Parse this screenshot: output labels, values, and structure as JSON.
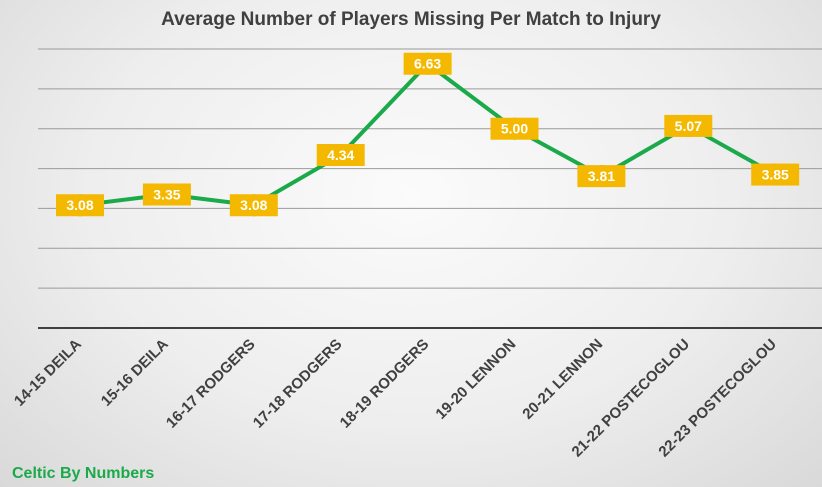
{
  "chart_data": {
    "type": "line",
    "title": "Average Number of Players Missing Per Match to Injury",
    "categories": [
      "14-15 DEILA",
      "15-16 DEILA",
      "16-17 RODGERS",
      "17-18 RODGERS",
      "18-19 RODGERS",
      "19-20 LENNON",
      "20-21 LENNON",
      "21-22 POSTECOGLOU",
      "22-23 POSTECOGLOU"
    ],
    "values": [
      3.08,
      3.35,
      3.08,
      4.34,
      6.63,
      5.0,
      3.81,
      5.07,
      3.85
    ],
    "data_labels": [
      "3.08",
      "3.35",
      "3.08",
      "4.34",
      "6.63",
      "5.00",
      "3.81",
      "5.07",
      "3.85"
    ],
    "ylim": [
      0,
      7
    ],
    "grid": true,
    "legend": "none",
    "colors": {
      "line": "#1aaa4a",
      "label_box": "#f5b800",
      "label_text": "#ffffff",
      "grid": "#9a9a9a",
      "axis": "#404040"
    }
  },
  "watermark": "Celtic By Numbers"
}
